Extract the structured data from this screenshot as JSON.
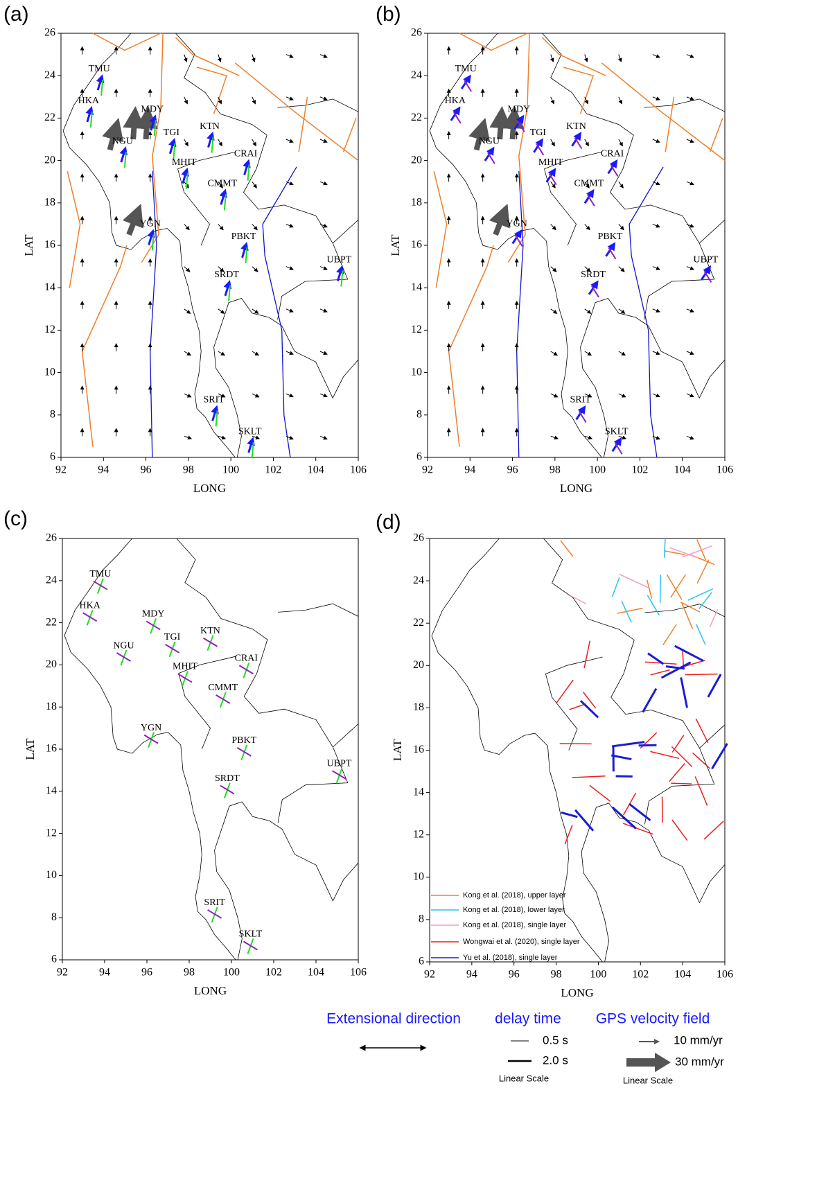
{
  "panels": [
    {
      "label": "(a)",
      "x_axis_label": "LONG",
      "y_axis_label": "LAT",
      "xlim": [
        92,
        106
      ],
      "ylim": [
        6,
        26
      ],
      "xticks": [
        92,
        94,
        96,
        98,
        100,
        102,
        104,
        106
      ],
      "yticks": [
        6,
        8,
        10,
        12,
        14,
        16,
        18,
        20,
        22,
        24,
        26
      ],
      "stations": [
        "TMU",
        "HKA",
        "MDY",
        "NGU",
        "TGI",
        "KTN",
        "CRAI",
        "MHIT",
        "CMMT",
        "YGN",
        "PBKT",
        "UBPT",
        "SRDT",
        "SRIT",
        "SKLT"
      ]
    },
    {
      "label": "(b)",
      "x_axis_label": "LONG",
      "y_axis_label": "LAT",
      "xlim": [
        92,
        106
      ],
      "ylim": [
        6,
        26
      ],
      "xticks": [
        92,
        94,
        96,
        98,
        100,
        102,
        104,
        106
      ],
      "yticks": [
        6,
        8,
        10,
        12,
        14,
        16,
        18,
        20,
        22,
        24,
        26
      ],
      "stations": [
        "TMU",
        "HKA",
        "MDY",
        "NGU",
        "TGI",
        "KTN",
        "CRAI",
        "MHIT",
        "CMMT",
        "YGN",
        "PBKT",
        "UBPT",
        "SRDT",
        "SRIT",
        "SKLT"
      ]
    },
    {
      "label": "(c)",
      "x_axis_label": "LONG",
      "y_axis_label": "LAT",
      "xlim": [
        92,
        106
      ],
      "ylim": [
        6,
        26
      ],
      "xticks": [
        92,
        94,
        96,
        98,
        100,
        102,
        104,
        106
      ],
      "yticks": [
        6,
        8,
        10,
        12,
        14,
        16,
        18,
        20,
        22,
        24,
        26
      ],
      "stations": [
        "TMU",
        "HKA",
        "MDY",
        "NGU",
        "TGI",
        "KTN",
        "CRAI",
        "MHIT",
        "CMMT",
        "YGN",
        "PBKT",
        "UBPT",
        "SRDT",
        "SRIT",
        "SKLT"
      ]
    },
    {
      "label": "(d)",
      "x_axis_label": "LONG",
      "y_axis_label": "LAT",
      "xlim": [
        92,
        106
      ],
      "ylim": [
        6,
        26
      ],
      "xticks": [
        92,
        94,
        96,
        98,
        100,
        102,
        104,
        106
      ],
      "yticks": [
        6,
        8,
        10,
        12,
        14,
        16,
        18,
        20,
        22,
        24,
        26
      ],
      "stations": [],
      "legend": [
        {
          "name": "Kong et al. (2018), upper layer",
          "color": "#f07f2a"
        },
        {
          "name": "Kong et al. (2018), lower layer",
          "color": "#27c3ef"
        },
        {
          "name": "Kong et al. (2018), single layer",
          "color": "#f59ac6"
        },
        {
          "name": "Wongwai et al. (2020), single layer",
          "color": "#ee1c1c"
        },
        {
          "name": "Yu et al. (2018), single layer",
          "color": "#1b1bd6"
        }
      ]
    }
  ],
  "bottom_legend": {
    "extensional_title": "Extensional direction",
    "delay_title": "delay time",
    "delay_small": "0.5 s",
    "delay_large": "2.0 s",
    "delay_scale": "Linear Scale",
    "gps_title": "GPS velocity field",
    "gps_small": "10 mm/yr",
    "gps_large": "30 mm/yr",
    "gps_scale": "Linear Scale"
  }
}
